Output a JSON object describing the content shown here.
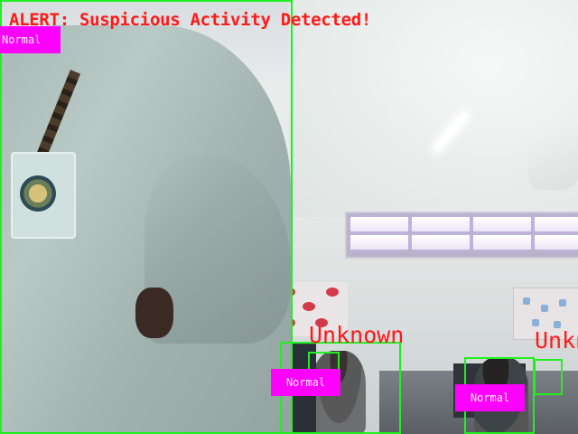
{
  "feed": {
    "alert_text": "ALERT: Suspicious Activity Detected!",
    "alert_color": "#ff1a1a",
    "box_color": "#22ee22",
    "tag_color": "#ff00ff"
  },
  "detections": [
    {
      "label": "Normal"
    },
    {
      "label": "Normal",
      "identity": "Unknown"
    },
    {
      "label": "Normal",
      "identity": "Unknown"
    }
  ]
}
